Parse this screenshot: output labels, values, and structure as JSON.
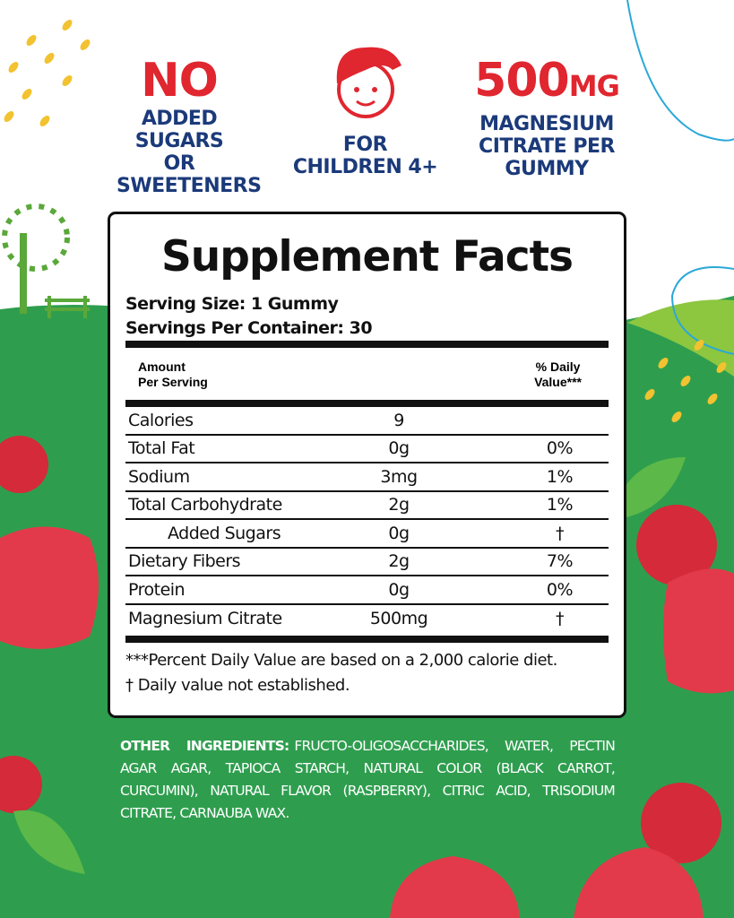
{
  "claims": [
    {
      "headline": "NO",
      "text_lines": [
        "ADDED",
        "SUGARS OR",
        "SWEETENERS"
      ],
      "icon": "no-sugar"
    },
    {
      "headline": "",
      "text_lines": [
        "FOR",
        "CHILDREN 4+"
      ],
      "icon": "child-face-icon"
    },
    {
      "headline": "500",
      "headline_unit": "MG",
      "text_lines": [
        "MAGNESIUM",
        "CITRATE PER",
        "GUMMY"
      ]
    }
  ],
  "facts": {
    "title": "Supplement Facts",
    "serving_size": "Serving Size: 1 Gummy",
    "servings_per_container": "Servings Per Container: 30",
    "header_amount": [
      "Amount",
      "Per Serving"
    ],
    "header_dv": [
      "% Daily",
      "Value***"
    ],
    "rows": [
      {
        "name": "Calories",
        "amount": "9",
        "dv": ""
      },
      {
        "name": "Total Fat",
        "amount": "0g",
        "dv": "0%"
      },
      {
        "name": "Sodium",
        "amount": "3mg",
        "dv": "1%"
      },
      {
        "name": "Total Carbohydrate",
        "amount": "2g",
        "dv": "1%"
      },
      {
        "name": "Added Sugars",
        "amount": "0g",
        "dv": "†"
      },
      {
        "name": "Dietary Fibers",
        "amount": "2g",
        "dv": "7%"
      },
      {
        "name": "Protein",
        "amount": "0g",
        "dv": "0%"
      },
      {
        "name": "Magnesium Citrate",
        "amount": "500mg",
        "dv": "†"
      }
    ],
    "footnotes": [
      "***Percent Daily Value  are based on a 2,000 calorie diet.",
      "† Daily value not established."
    ]
  },
  "ingredients": {
    "label": "OTHER INGREDIENTS:",
    "text": "FRUCTO-OLIGOSACCHARIDES, WATER, PECTIN AGAR AGAR, TAPIOCA STARCH, NATURAL COLOR (BLACK CARROT, CURCUMIN), NATURAL FLAVOR (RASPBERRY), CITRIC ACID, TRISODIUM CITRATE, CARNAUBA WAX."
  },
  "colors": {
    "red": "#e0262f",
    "navy": "#1b3a7a",
    "green": "#2e9e4e"
  }
}
